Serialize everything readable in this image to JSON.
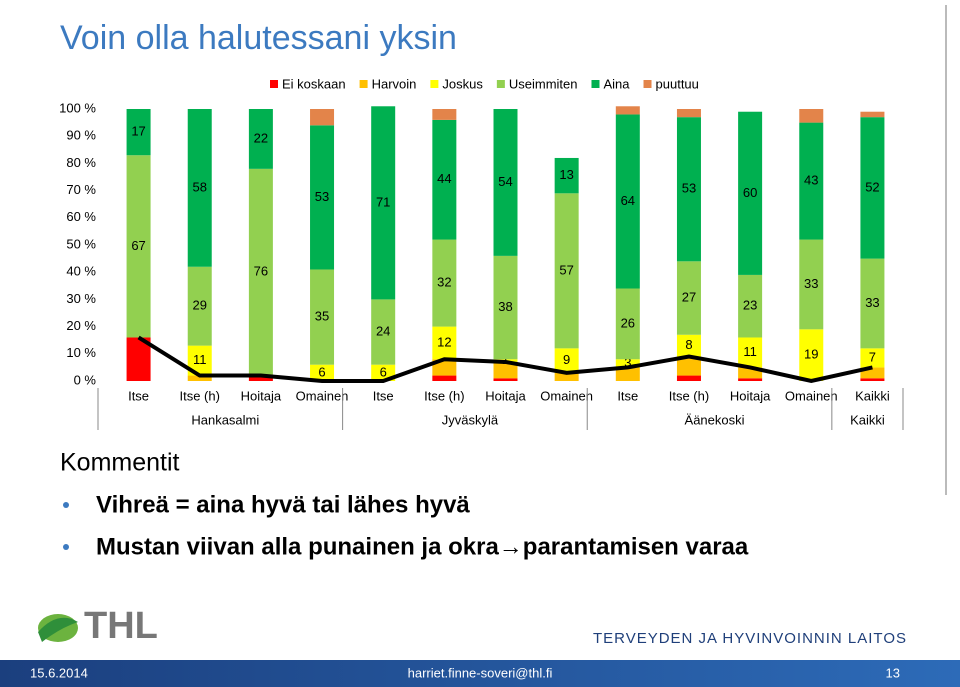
{
  "header": {
    "title": "Voin olla halutessani yksin"
  },
  "chart_data": {
    "type": "bar",
    "stacked": true,
    "categories": [
      "Itse",
      "Itse (h)",
      "Hoitaja",
      "Omainen",
      "Itse",
      "Itse (h)",
      "Hoitaja",
      "Omainen",
      "Itse",
      "Itse (h)",
      "Hoitaja",
      "Omainen",
      "Kaikki"
    ],
    "groups": [
      {
        "name": "Hankasalmi",
        "size": 4
      },
      {
        "name": "Jyväskylä",
        "size": 4
      },
      {
        "name": "Äänekoski",
        "size": 4
      },
      {
        "name": "Kaikki",
        "size": 1
      }
    ],
    "series": [
      {
        "name": "Ei koskaan",
        "color": "#ff0000",
        "labels": false,
        "values": [
          16,
          0,
          2,
          0,
          0,
          2,
          1,
          0,
          0,
          2,
          1,
          0,
          1
        ]
      },
      {
        "name": "Harvoin",
        "color": "#ffc000",
        "labels": false,
        "values": [
          0,
          2,
          0,
          0,
          0,
          6,
          6,
          3,
          5,
          7,
          4,
          0,
          4
        ]
      },
      {
        "name": "Joskus",
        "color": "#ffff00",
        "labels": true,
        "values": [
          0,
          11,
          0,
          6,
          6,
          12,
          1,
          9,
          3,
          8,
          11,
          19,
          7
        ]
      },
      {
        "name": "Useimmiten",
        "color": "#92d050",
        "labels": true,
        "values": [
          67,
          29,
          76,
          35,
          24,
          32,
          38,
          57,
          26,
          27,
          23,
          33,
          33
        ]
      },
      {
        "name": "Aina",
        "color": "#00b050",
        "labels": true,
        "values": [
          17,
          58,
          22,
          53,
          71,
          44,
          54,
          13,
          64,
          53,
          60,
          43,
          52
        ]
      },
      {
        "name": "puuttuu",
        "color": "#e3844a",
        "labels": false,
        "values": [
          0,
          0,
          0,
          6,
          0,
          4,
          0,
          0,
          3,
          3,
          0,
          5,
          2
        ]
      }
    ],
    "threshold_line": true,
    "ylim": [
      0,
      100
    ],
    "yticks": [
      {
        "value": 0,
        "label": "0 %"
      },
      {
        "value": 10,
        "label": "10 %"
      },
      {
        "value": 20,
        "label": "20 %"
      },
      {
        "value": 30,
        "label": "30 %"
      },
      {
        "value": 40,
        "label": "40 %"
      },
      {
        "value": 50,
        "label": "50 %"
      },
      {
        "value": 60,
        "label": "60 %"
      },
      {
        "value": 70,
        "label": "70 %"
      },
      {
        "value": 80,
        "label": "80 %"
      },
      {
        "value": 90,
        "label": "90 %"
      },
      {
        "value": 100,
        "label": "100 %"
      }
    ]
  },
  "comments": {
    "heading": "Kommentit",
    "items": [
      "Vihreä = aina hyvä tai lähes hyvä",
      "Mustan viivan alla punainen ja okra→parantamisen varaa"
    ]
  },
  "logo": {
    "text": "THL",
    "org": "TERVEYDEN JA HYVINVOINNIN LAITOS"
  },
  "footer": {
    "date": "15.6.2014",
    "email": "harriet.finne-soveri@thl.fi",
    "page": "13"
  }
}
